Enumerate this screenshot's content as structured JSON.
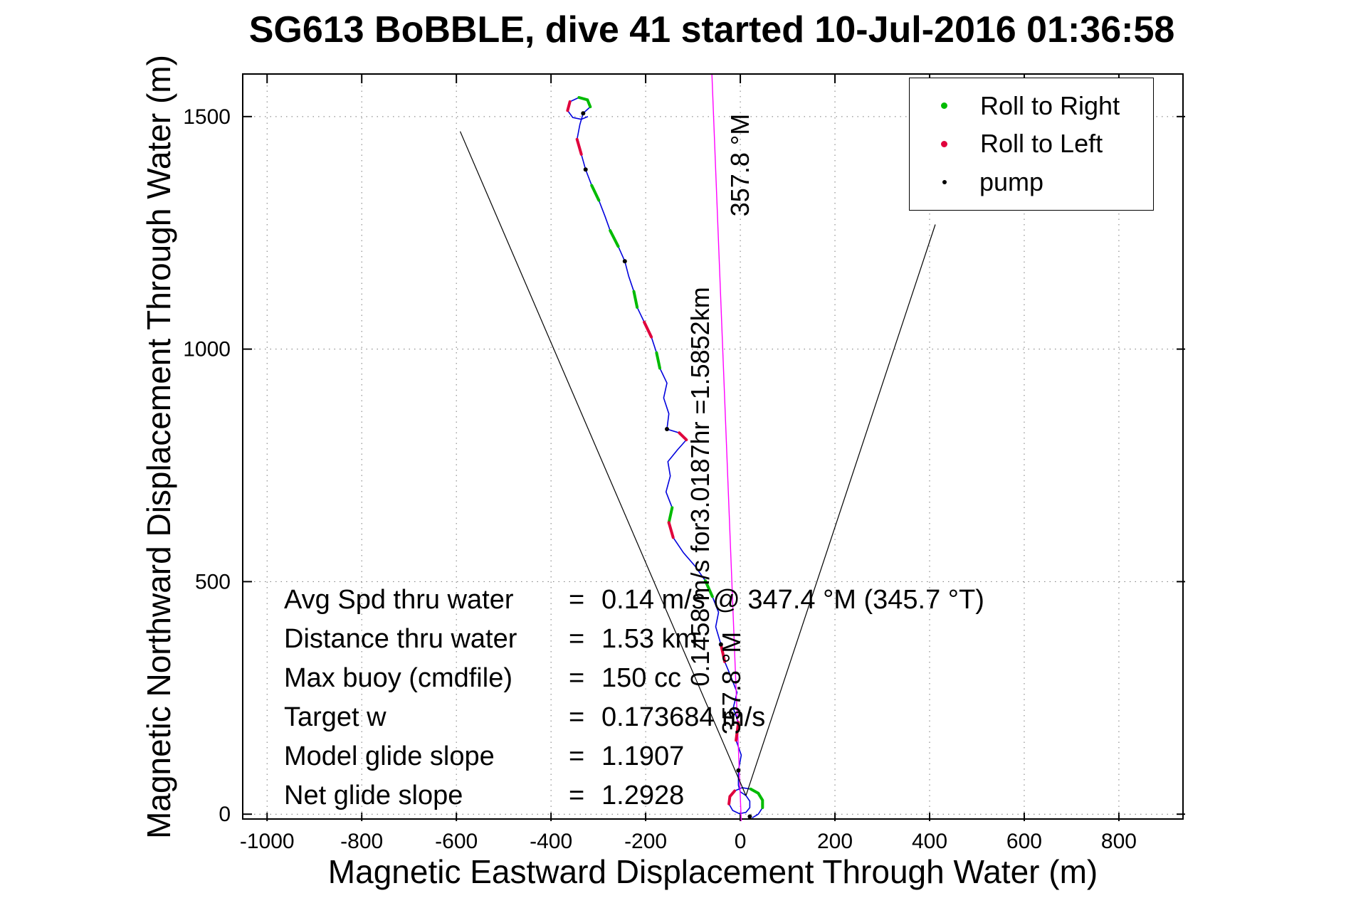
{
  "title": "SG613 BoBBLE, dive 41 started 10-Jul-2016 01:36:58",
  "axes": {
    "xlabel": "Magnetic Eastward Displacement Through Water (m)",
    "ylabel": "Magnetic Northward Displacement Through Water (m)"
  },
  "legend": {
    "items": [
      {
        "label": "Roll to Right",
        "color": "#00bb00",
        "marker": "dot"
      },
      {
        "label": "Roll to Left",
        "color": "#e0003c",
        "marker": "dot"
      },
      {
        "label": "pump",
        "color": "#000000",
        "marker": "dot"
      }
    ]
  },
  "stats": {
    "eq": "=",
    "rows": [
      {
        "label": "Avg Spd thru water",
        "value": "0.14 m/s @ 347.4 °M (345.7 °T)"
      },
      {
        "label": "Distance thru water",
        "value": "1.53 km"
      },
      {
        "label": "Max buoy (cmdfile)",
        "value": "150 cc"
      },
      {
        "label": "Target w",
        "value": "0.173684 m/s"
      },
      {
        "label": "Model glide slope",
        "value": "1.1907"
      },
      {
        "label": "Net glide slope",
        "value": "1.2928"
      }
    ]
  },
  "annotations": [
    {
      "text": "357.8 °M",
      "rotation_deg": -90
    },
    {
      "text": "0.1458 m/s for3.0187hr =1.5852km",
      "rotation_deg": -90
    },
    {
      "text": "357.8 °M",
      "rotation_deg": -90
    }
  ],
  "chart_data": {
    "type": "line",
    "title": "SG613 BoBBLE, dive 41 started 10-Jul-2016 01:36:58",
    "xlabel": "Magnetic Eastward Displacement Through Water (m)",
    "ylabel": "Magnetic Northward Displacement Through Water (m)",
    "xlim": [
      -1050,
      940
    ],
    "ylim": [
      -15,
      1590
    ],
    "x_ticks": [
      -1000,
      -800,
      -600,
      -400,
      -200,
      0,
      200,
      400,
      600,
      800
    ],
    "y_ticks": [
      0,
      500,
      1000,
      1500
    ],
    "grid": "dotted",
    "grid_color": "#777777",
    "legend_position": "top-right",
    "legend_entries": [
      "Roll to Right",
      "Roll to Left",
      "pump"
    ],
    "series": [
      {
        "name": "dive-track",
        "color": "#0000dd",
        "width": 1.6,
        "points": [
          [
            25,
            -8
          ],
          [
            38,
            0
          ],
          [
            47,
            14
          ],
          [
            47,
            30
          ],
          [
            38,
            45
          ],
          [
            22,
            54
          ],
          [
            4,
            57
          ],
          [
            -12,
            50
          ],
          [
            -22,
            38
          ],
          [
            -24,
            22
          ],
          [
            -16,
            8
          ],
          [
            -2,
            1
          ],
          [
            12,
            4
          ],
          [
            20,
            14
          ],
          [
            20,
            28
          ],
          [
            12,
            40
          ],
          [
            0,
            48
          ],
          [
            -4,
            62
          ],
          [
            -4,
            94
          ],
          [
            2,
            127
          ],
          [
            -9,
            159
          ],
          [
            -4,
            197
          ],
          [
            -15,
            228
          ],
          [
            -7,
            262
          ],
          [
            -20,
            296
          ],
          [
            -33,
            328
          ],
          [
            -41,
            365
          ],
          [
            -52,
            403
          ],
          [
            -46,
            434
          ],
          [
            -59,
            468
          ],
          [
            -74,
            502
          ],
          [
            -96,
            534
          ],
          [
            -120,
            562
          ],
          [
            -142,
            595
          ],
          [
            -151,
            627
          ],
          [
            -144,
            659
          ],
          [
            -157,
            693
          ],
          [
            -148,
            727
          ],
          [
            -153,
            758
          ],
          [
            -133,
            783
          ],
          [
            -114,
            805
          ],
          [
            -129,
            820
          ],
          [
            -155,
            828
          ],
          [
            -151,
            861
          ],
          [
            -162,
            895
          ],
          [
            -155,
            927
          ],
          [
            -170,
            959
          ],
          [
            -177,
            992
          ],
          [
            -188,
            1026
          ],
          [
            -203,
            1058
          ],
          [
            -218,
            1090
          ],
          [
            -225,
            1124
          ],
          [
            -236,
            1157
          ],
          [
            -244,
            1189
          ],
          [
            -258,
            1221
          ],
          [
            -275,
            1255
          ],
          [
            -286,
            1286
          ],
          [
            -299,
            1320
          ],
          [
            -314,
            1352
          ],
          [
            -327,
            1386
          ],
          [
            -336,
            1419
          ],
          [
            -345,
            1451
          ],
          [
            -339,
            1483
          ],
          [
            -332,
            1507
          ],
          [
            -317,
            1521
          ],
          [
            -323,
            1536
          ],
          [
            -341,
            1541
          ],
          [
            -360,
            1532
          ],
          [
            -365,
            1513
          ],
          [
            -354,
            1498
          ],
          [
            -336,
            1494
          ],
          [
            -322,
            1500
          ]
        ]
      },
      {
        "name": "bearing-line-357-8M",
        "color": "#ff00ff",
        "width": 1.4,
        "points": [
          [
            2,
            -15
          ],
          [
            -60,
            1590
          ]
        ]
      },
      {
        "name": "sight-line-left",
        "color": "#000000",
        "width": 1.2,
        "points": [
          [
            12,
            40
          ],
          [
            -592,
            1468
          ]
        ]
      },
      {
        "name": "sight-line-right",
        "color": "#000000",
        "width": 1.2,
        "points": [
          [
            12,
            40
          ],
          [
            412,
            1268
          ]
        ]
      }
    ],
    "markers": [
      {
        "name": "roll-to-right",
        "color": "#00bb00",
        "segments": [
          [
            [
              22,
              54
            ],
            [
              38,
              45
            ],
            [
              47,
              30
            ],
            [
              47,
              14
            ]
          ],
          [
            [
              -59,
              468
            ],
            [
              -74,
              502
            ]
          ],
          [
            [
              -151,
              627
            ],
            [
              -144,
              659
            ]
          ],
          [
            [
              -170,
              959
            ],
            [
              -177,
              992
            ]
          ],
          [
            [
              -218,
              1090
            ],
            [
              -225,
              1124
            ]
          ],
          [
            [
              -258,
              1221
            ],
            [
              -275,
              1255
            ]
          ],
          [
            [
              -299,
              1320
            ],
            [
              -314,
              1352
            ]
          ],
          [
            [
              -317,
              1521
            ],
            [
              -323,
              1536
            ],
            [
              -341,
              1541
            ]
          ]
        ]
      },
      {
        "name": "roll-to-left",
        "color": "#e0003c",
        "segments": [
          [
            [
              -12,
              50
            ],
            [
              -22,
              38
            ],
            [
              -24,
              22
            ]
          ],
          [
            [
              -9,
              159
            ],
            [
              -4,
              197
            ]
          ],
          [
            [
              -33,
              328
            ],
            [
              -41,
              365
            ]
          ],
          [
            [
              -142,
              595
            ],
            [
              -151,
              627
            ]
          ],
          [
            [
              -114,
              805
            ],
            [
              -129,
              820
            ]
          ],
          [
            [
              -188,
              1026
            ],
            [
              -203,
              1058
            ]
          ],
          [
            [
              -336,
              1419
            ],
            [
              -345,
              1451
            ]
          ],
          [
            [
              -360,
              1532
            ],
            [
              -365,
              1513
            ]
          ]
        ]
      },
      {
        "name": "pump",
        "color": "#000000",
        "points": [
          [
            -4,
            94
          ],
          [
            -41,
            365
          ],
          [
            -155,
            828
          ],
          [
            -244,
            1189
          ],
          [
            -327,
            1386
          ],
          [
            -332,
            1507
          ],
          [
            20,
            -5
          ]
        ]
      }
    ]
  }
}
